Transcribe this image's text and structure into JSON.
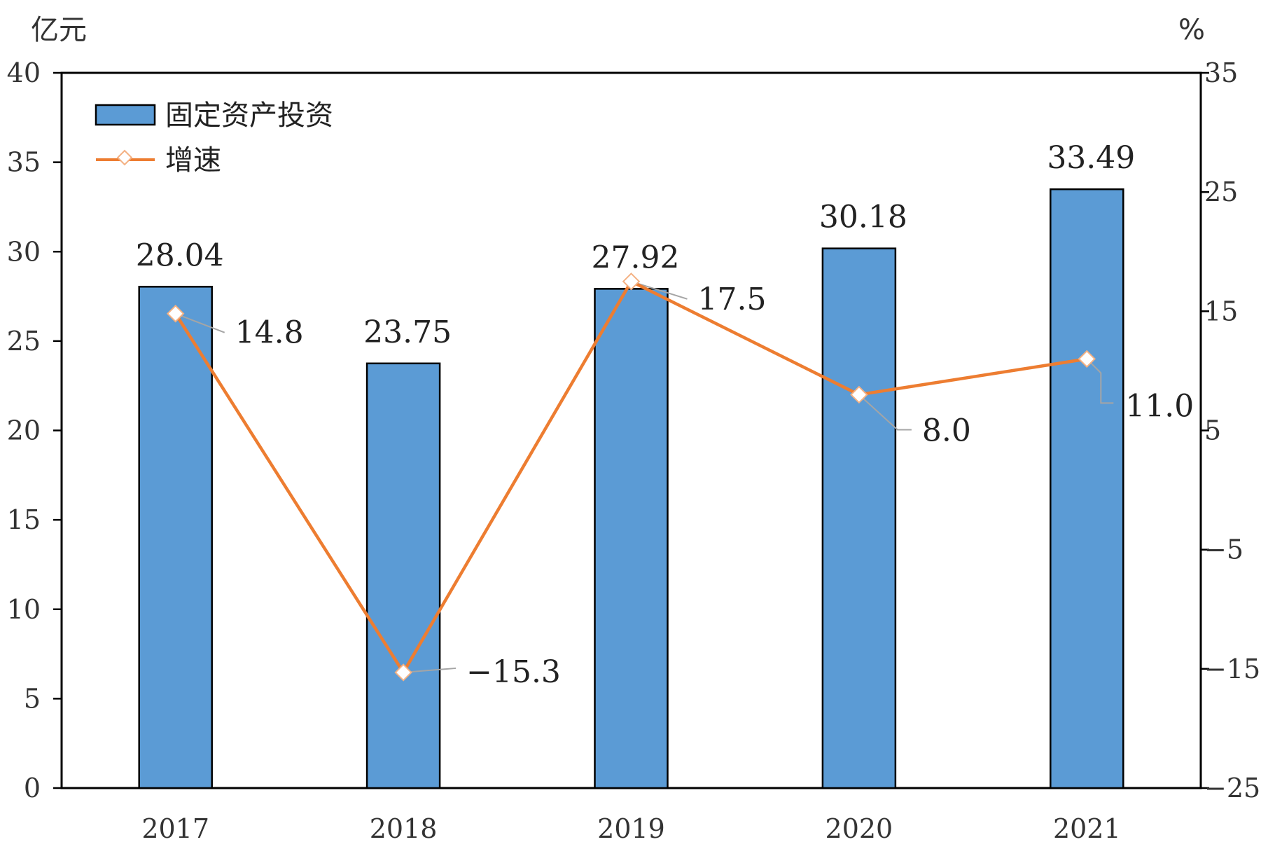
{
  "chart_data": {
    "type": "bar+line",
    "categories": [
      "2017",
      "2018",
      "2019",
      "2020",
      "2021"
    ],
    "series": [
      {
        "name": "固定资产投资",
        "type": "bar",
        "axis": "left",
        "values": [
          28.04,
          23.75,
          27.92,
          30.18,
          33.49
        ],
        "labels": [
          "28.04",
          "23.75",
          "27.92",
          "30.18",
          "33.49"
        ],
        "color": "#5b9bd5"
      },
      {
        "name": "增速",
        "type": "line",
        "axis": "right",
        "values": [
          14.8,
          -15.3,
          17.5,
          8.0,
          11.0
        ],
        "labels": [
          "14.8",
          "−15.3",
          "17.5",
          "8.0",
          "11.0"
        ],
        "color": "#ed7d31"
      }
    ],
    "y_left": {
      "unit": "亿元",
      "range": [
        0,
        40
      ],
      "ticks": [
        0,
        5,
        10,
        15,
        20,
        25,
        30,
        35,
        40
      ],
      "tick_labels": [
        "0",
        "5",
        "10",
        "15",
        "20",
        "25",
        "30",
        "35",
        "40"
      ]
    },
    "y_right": {
      "unit": "%",
      "range": [
        -25,
        35
      ],
      "ticks": [
        -25,
        -15,
        -5,
        5,
        15,
        25,
        35
      ],
      "tick_labels": [
        "−25",
        "−15",
        "−5",
        "5",
        "15",
        "25",
        "35"
      ]
    },
    "legend": "top-left",
    "grid": false
  }
}
